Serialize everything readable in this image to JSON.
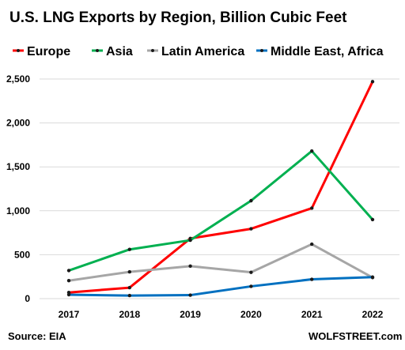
{
  "chart_data": {
    "type": "line",
    "title": "U.S. LNG Exports by Region, Billion Cubic Feet",
    "categories": [
      "2017",
      "2018",
      "2019",
      "2020",
      "2021",
      "2022"
    ],
    "y_ticks": [
      "0",
      "500",
      "1,000",
      "1,500",
      "2,000",
      "2,500"
    ],
    "ylim": [
      0,
      2500
    ],
    "grid": true,
    "legend_position": "top",
    "series": [
      {
        "name": "Europe",
        "color": "#ff0000",
        "values": [
          70,
          125,
          685,
          795,
          1030,
          2470
        ]
      },
      {
        "name": "Asia",
        "color": "#00b050",
        "values": [
          320,
          560,
          665,
          1115,
          1680,
          900
        ]
      },
      {
        "name": "Latin America",
        "color": "#a6a6a6",
        "values": [
          205,
          305,
          370,
          300,
          620,
          240
        ]
      },
      {
        "name": "Middle East, Africa",
        "color": "#0070c0",
        "values": [
          45,
          35,
          40,
          140,
          220,
          245
        ]
      }
    ],
    "source": "Source: EIA",
    "credit": "WOLFSTREET.com"
  }
}
